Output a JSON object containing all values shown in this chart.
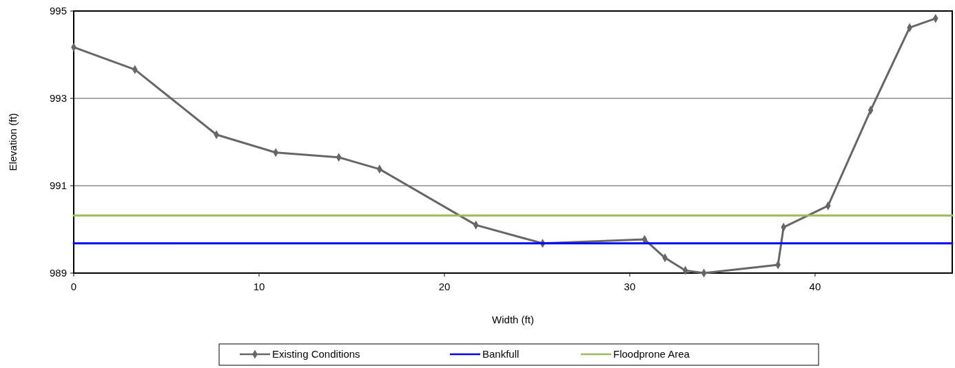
{
  "chart_data": {
    "type": "line",
    "xlabel": "Width (ft)",
    "ylabel": "Elevation (ft)",
    "xlim": [
      0,
      47.4
    ],
    "xticks": [
      0,
      10,
      20,
      30,
      40
    ],
    "ylim": [
      989,
      995
    ],
    "yticks": [
      989,
      991,
      993,
      995
    ],
    "grid": "y",
    "legend": "bottom",
    "series": [
      {
        "name": "Existing Conditions",
        "color": "#666666",
        "marker": "diamond",
        "x": [
          0,
          3.3,
          7.7,
          10.9,
          14.3,
          16.5,
          21.7,
          25.3,
          30.8,
          31.9,
          33.0,
          34.0,
          38.0,
          38.3,
          40.7,
          43.0,
          45.1,
          46.5
        ],
        "values": [
          994.17,
          993.66,
          992.17,
          991.76,
          991.65,
          991.38,
          990.1,
          989.68,
          989.77,
          989.35,
          989.06,
          989.0,
          989.19,
          990.05,
          990.54,
          992.73,
          994.62,
          994.83
        ]
      },
      {
        "name": "Bankfull",
        "color": "#0000ff",
        "marker": "none",
        "x": [
          0,
          47.4
        ],
        "values": [
          989.68,
          989.68
        ]
      },
      {
        "name": "Floodprone Area",
        "color": "#9bbb59",
        "marker": "none",
        "x": [
          0,
          47.4
        ],
        "values": [
          990.32,
          990.32
        ]
      }
    ]
  }
}
